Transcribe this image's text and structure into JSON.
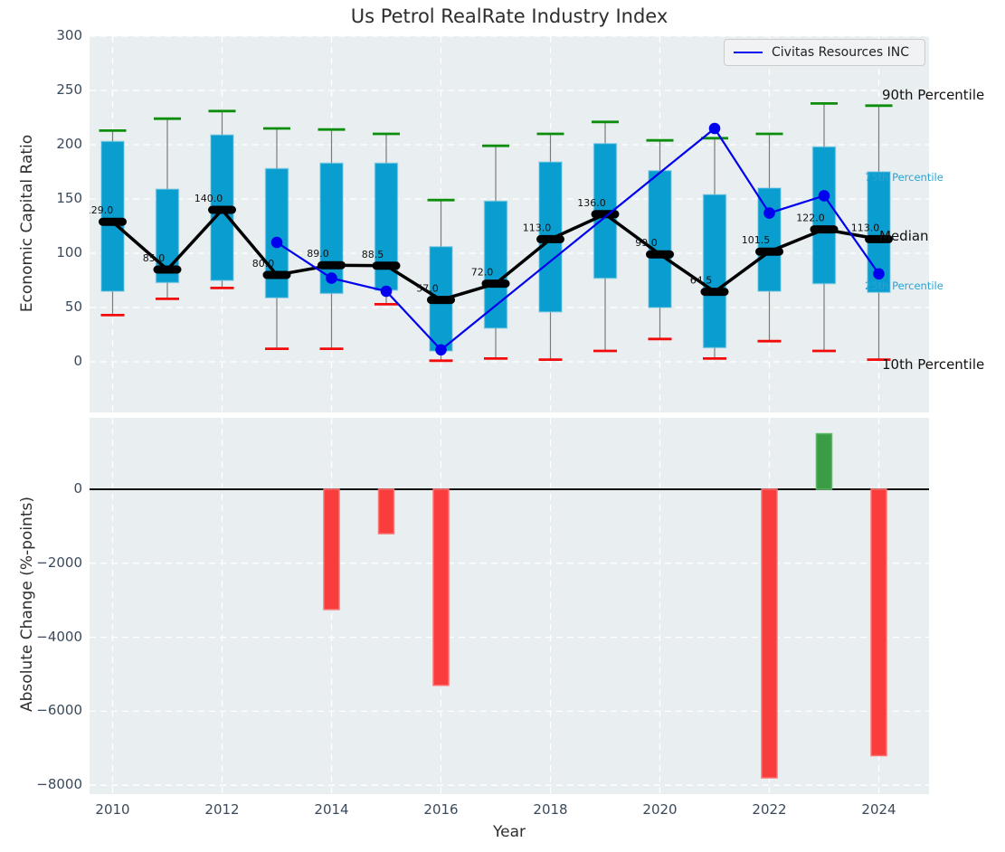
{
  "title": "Us Petrol RealRate Industry Index",
  "legend": {
    "label": "Civitas Resources INC"
  },
  "annotations": {
    "p90": "90th Percentile",
    "p75": "75th Percentile",
    "median": "Median",
    "p25": "25th Percentile",
    "p10": "10th Percentile"
  },
  "colors": {
    "axes_bg": "#e9eef0",
    "grid": "#ffffff",
    "tick": "#3a4a5c",
    "title": "#2d2d2d",
    "box_fill": "#0a9dcf",
    "box_edge": "#6cc4e0",
    "whisker": "#7a7a7a",
    "cap_90": "#0c8e0c",
    "cap_10": "#f30b0b",
    "median_line": "#000000",
    "company_line": "#0000ee",
    "percentile_label_blue": "#29a3d5",
    "bar_neg": "#f93c3c",
    "bar_neg_edge": "#fb7373",
    "bar_pos": "#3a9d46",
    "bar_pos_edge": "#5cb765"
  },
  "chart_data": [
    {
      "type": "boxplot+line",
      "title": "Us Petrol RealRate Industry Index",
      "ylabel": "Economic Capital Ratio",
      "ylim": [
        -46.7,
        300
      ],
      "yticks": [
        0,
        50,
        100,
        150,
        200,
        250,
        300
      ],
      "grid": true,
      "legend_position": "upper right",
      "years": [
        2010,
        2011,
        2012,
        2013,
        2014,
        2015,
        2016,
        2017,
        2018,
        2019,
        2020,
        2021,
        2022,
        2023,
        2024
      ],
      "percentiles": {
        "p10": [
          43,
          58,
          68,
          12,
          12,
          53,
          1,
          3,
          2,
          10,
          21,
          3,
          19,
          10,
          2
        ],
        "p25": [
          65,
          73,
          75,
          59,
          63,
          66,
          10,
          31,
          46,
          77,
          50,
          13,
          65,
          72,
          64
        ],
        "median": [
          129,
          85,
          140,
          80,
          89,
          88.5,
          57,
          72,
          113,
          136,
          99,
          64.5,
          101.5,
          122,
          113
        ],
        "p75": [
          203,
          159,
          209,
          178,
          183,
          183,
          106,
          148,
          184,
          201,
          176,
          154,
          160,
          198,
          175
        ],
        "p90": [
          213,
          224,
          231,
          215,
          214,
          210,
          149,
          199,
          210,
          221,
          204,
          206,
          210,
          238,
          236
        ]
      },
      "median_labels": [
        "129.0",
        "85.0",
        "140.0",
        "80.0",
        "89.0",
        "88.5",
        "57.0",
        "72.0",
        "113.0",
        "136.0",
        "99.0",
        "64.5",
        "101.5",
        "122.0",
        "113.0"
      ],
      "company_series": {
        "name": "Civitas Resources INC",
        "points": [
          {
            "year": 2013,
            "value": 110
          },
          {
            "year": 2014,
            "value": 77
          },
          {
            "year": 2015,
            "value": 65
          },
          {
            "year": 2016,
            "value": 11
          },
          {
            "year": 2021,
            "value": 215
          },
          {
            "year": 2022,
            "value": 137
          },
          {
            "year": 2023,
            "value": 153
          },
          {
            "year": 2024,
            "value": 81
          }
        ]
      }
    },
    {
      "type": "bar",
      "ylabel": "Absolute Change (%-points)",
      "xlabel": "Year",
      "ylim": [
        -8240,
        1930
      ],
      "yticks": [
        0,
        -2000,
        -4000,
        -6000,
        -8000
      ],
      "xticks": [
        2010,
        2012,
        2014,
        2016,
        2018,
        2020,
        2022,
        2024
      ],
      "grid": true,
      "zero_line": true,
      "bars": [
        {
          "year": 2014,
          "value": -3250
        },
        {
          "year": 2015,
          "value": -1200
        },
        {
          "year": 2016,
          "value": -5300
        },
        {
          "year": 2022,
          "value": -7800
        },
        {
          "year": 2023,
          "value": 1500
        },
        {
          "year": 2024,
          "value": -7200
        }
      ]
    }
  ]
}
